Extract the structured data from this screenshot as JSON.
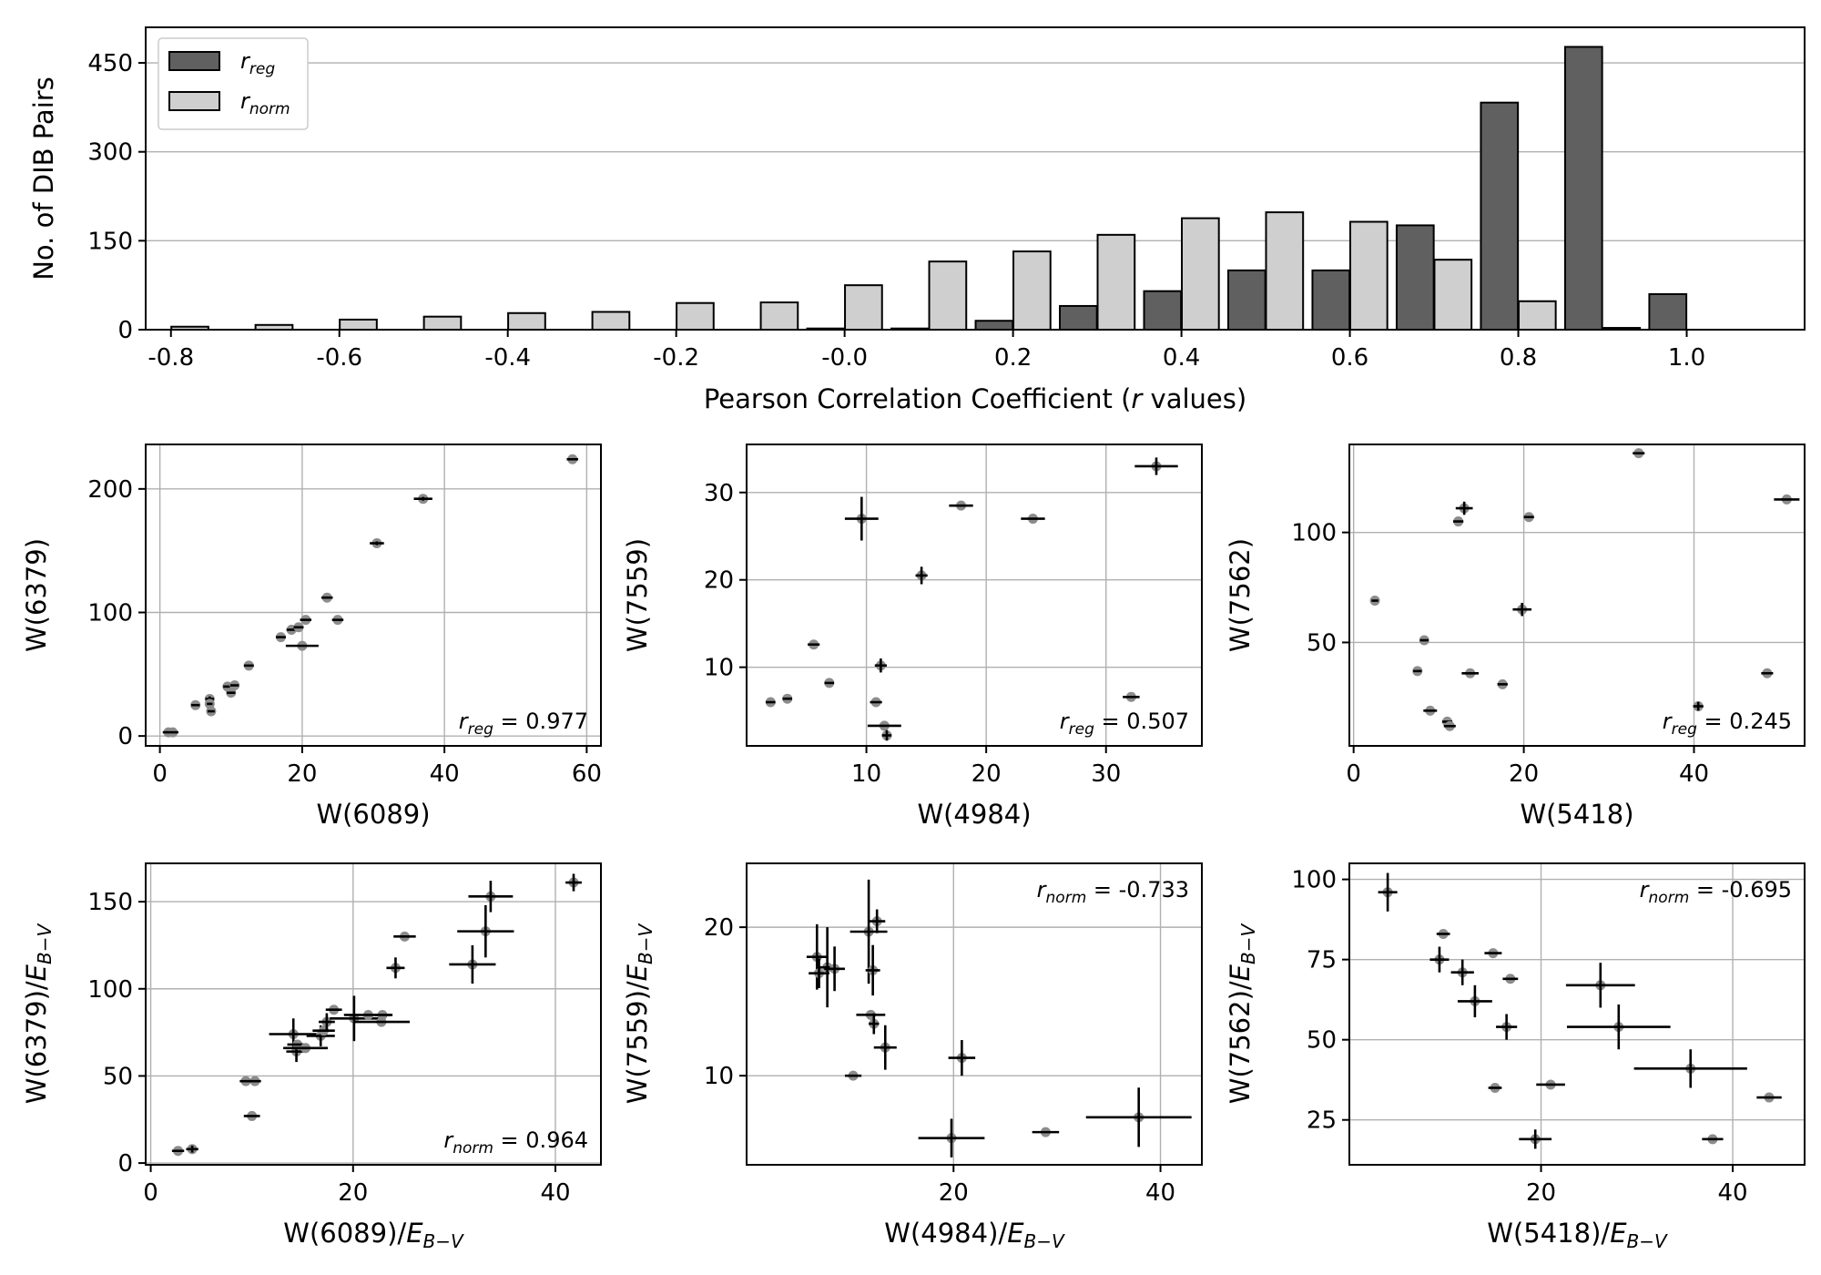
{
  "chart_data": [
    {
      "type": "bar",
      "ylabel": "No. of DIB Pairs",
      "xlabel_prefix": "Pearson Correlation Coefficient (",
      "xlabel_var": "r",
      "xlabel_suffix": " values)",
      "xlim": [
        -0.83,
        1.14
      ],
      "ylim": [
        0,
        510
      ],
      "xticks": [
        -0.8,
        -0.6,
        -0.4,
        -0.2,
        0.0,
        0.2,
        0.4,
        0.6,
        0.8,
        1.0
      ],
      "xtick_labels": [
        "-0.8",
        "-0.6",
        "-0.4",
        "-0.2",
        "-0.0",
        "0.2",
        "0.4",
        "0.6",
        "0.8",
        "1.0"
      ],
      "yticks": [
        0,
        150,
        300,
        450
      ],
      "ytick_labels": [
        "0",
        "150",
        "300",
        "450"
      ],
      "grid": "y",
      "legend_position": "top-left",
      "bins": [
        -0.8,
        -0.7,
        -0.6,
        -0.5,
        -0.4,
        -0.3,
        -0.2,
        -0.1,
        0.0,
        0.1,
        0.2,
        0.3,
        0.4,
        0.5,
        0.6,
        0.7,
        0.8,
        0.9,
        1.0
      ],
      "series": [
        {
          "name": "r_reg",
          "label": "r",
          "sub": "reg",
          "color": "#606060",
          "values": [
            0,
            0,
            0,
            0,
            0,
            0,
            0,
            0,
            2,
            2,
            15,
            40,
            65,
            100,
            100,
            176,
            383,
            477,
            60
          ]
        },
        {
          "name": "r_norm",
          "label": "r",
          "sub": "norm",
          "color": "#cfcfcf",
          "values": [
            5,
            8,
            17,
            22,
            28,
            30,
            45,
            46,
            75,
            115,
            132,
            160,
            188,
            198,
            182,
            118,
            48,
            3,
            0
          ]
        }
      ]
    },
    {
      "type": "scatter",
      "xlabel": "W(6089)",
      "ylabel": "W(6379)",
      "xlim": [
        -2,
        62
      ],
      "ylim": [
        -8,
        236
      ],
      "xticks": [
        0,
        20,
        40,
        60
      ],
      "yticks": [
        0,
        100,
        200
      ],
      "annotation": {
        "var": "r",
        "sub": "reg",
        "text": " = 0.977",
        "position": "bottom-right"
      },
      "points": [
        [
          1.2,
          3,
          0.8,
          0
        ],
        [
          1.8,
          3,
          0.8,
          0
        ],
        [
          5,
          25,
          0.6,
          0
        ],
        [
          7,
          30,
          0.6,
          2
        ],
        [
          7,
          26,
          0.4,
          0
        ],
        [
          7.2,
          20,
          0.5,
          0
        ],
        [
          9.5,
          40,
          0.6,
          0
        ],
        [
          10,
          35,
          0.6,
          0
        ],
        [
          10.5,
          41,
          0.6,
          0
        ],
        [
          12.5,
          57,
          0.7,
          0
        ],
        [
          17,
          80,
          0.7,
          0
        ],
        [
          18.5,
          86,
          0.7,
          0
        ],
        [
          19.5,
          88,
          0.7,
          0
        ],
        [
          20,
          73,
          2.3,
          0
        ],
        [
          20.5,
          94,
          0.8,
          0
        ],
        [
          23.5,
          112,
          0.8,
          0
        ],
        [
          25,
          94,
          0.8,
          0
        ],
        [
          30.5,
          156,
          1.0,
          1.5
        ],
        [
          37,
          192,
          1.3,
          1.5
        ],
        [
          58,
          224,
          0.8,
          0
        ]
      ]
    },
    {
      "type": "scatter",
      "xlabel": "W(4984)",
      "ylabel": "W(7559)",
      "xlim": [
        0,
        38
      ],
      "ylim": [
        1,
        35.5
      ],
      "xticks": [
        10,
        20,
        30
      ],
      "yticks": [
        10,
        20,
        30
      ],
      "annotation": {
        "var": "r",
        "sub": "reg",
        "text": " = 0.507",
        "position": "bottom-right"
      },
      "points": [
        [
          2,
          6,
          0.4,
          0
        ],
        [
          3.4,
          6.4,
          0.4,
          0
        ],
        [
          5.6,
          12.6,
          0.5,
          0
        ],
        [
          6.9,
          8.2,
          0.4,
          0
        ],
        [
          9.6,
          27,
          1.4,
          2.5
        ],
        [
          10.8,
          6,
          0.5,
          0
        ],
        [
          11.2,
          10.2,
          0.5,
          0.8
        ],
        [
          11.5,
          3.3,
          1.4,
          0
        ],
        [
          11.7,
          2.2,
          0.4,
          0.6
        ],
        [
          14.6,
          20.5,
          0.5,
          1
        ],
        [
          17.9,
          28.5,
          1.0,
          0
        ],
        [
          23.9,
          27,
          1.0,
          0
        ],
        [
          32.1,
          6.6,
          0.7,
          0
        ],
        [
          34.2,
          33,
          1.8,
          1
        ]
      ]
    },
    {
      "type": "scatter",
      "xlabel": "W(5418)",
      "ylabel": "W(7562)",
      "xlim": [
        -0.5,
        53
      ],
      "ylim": [
        3,
        140
      ],
      "xticks": [
        0,
        20,
        40
      ],
      "yticks": [
        50,
        100
      ],
      "annotation": {
        "var": "r",
        "sub": "reg",
        "text": " = 0.245",
        "position": "bottom-right"
      },
      "points": [
        [
          2.5,
          69,
          0.4,
          0
        ],
        [
          7.5,
          37,
          0.5,
          0
        ],
        [
          8.3,
          51,
          0.5,
          0
        ],
        [
          9,
          19,
          0.8,
          0
        ],
        [
          11,
          14,
          0.6,
          0
        ],
        [
          11.3,
          12,
          0.7,
          0
        ],
        [
          12.3,
          105,
          0.6,
          0
        ],
        [
          13,
          111,
          1.0,
          3
        ],
        [
          13.7,
          36,
          1.0,
          0
        ],
        [
          17.5,
          31,
          0.6,
          0
        ],
        [
          19.8,
          65,
          1.1,
          3
        ],
        [
          20.6,
          107,
          0.6,
          0
        ],
        [
          33.5,
          136,
          0.7,
          0
        ],
        [
          40.5,
          21,
          0.6,
          2
        ],
        [
          48.6,
          36,
          0.7,
          0
        ],
        [
          50.9,
          115,
          1.5,
          0
        ]
      ]
    },
    {
      "type": "scatter",
      "xlabel_var": "W(6089)/",
      "xlabel_e": "E",
      "xlabel_sub": "B−V",
      "ylabel_var": "W(6379)/",
      "ylabel_e": "E",
      "ylabel_sub": "B−V",
      "xlim": [
        -0.5,
        44.5
      ],
      "ylim": [
        -1,
        172
      ],
      "xticks": [
        0,
        20,
        40
      ],
      "yticks": [
        0,
        50,
        100,
        150
      ],
      "annotation": {
        "var": "r",
        "sub": "norm",
        "text": " = 0.964",
        "position": "bottom-right"
      },
      "points": [
        [
          2.7,
          7,
          0.6,
          0
        ],
        [
          4.1,
          8,
          0.6,
          2
        ],
        [
          9.4,
          47,
          0.6,
          0
        ],
        [
          10.3,
          47,
          0.6,
          0
        ],
        [
          10,
          27,
          0.8,
          0
        ],
        [
          14.1,
          74,
          2.4,
          9
        ],
        [
          14.4,
          64,
          1.0,
          6
        ],
        [
          14.5,
          68,
          1.0,
          0
        ],
        [
          15.3,
          66,
          2.2,
          0
        ],
        [
          16.8,
          73,
          1.4,
          6
        ],
        [
          17.1,
          76,
          1.1,
          0
        ],
        [
          17.4,
          81,
          0.8,
          5
        ],
        [
          18.1,
          88,
          0.8,
          0
        ],
        [
          20.1,
          83,
          2.4,
          13
        ],
        [
          21.5,
          85,
          2.4,
          0
        ],
        [
          22.8,
          81,
          2.8,
          0
        ],
        [
          22.9,
          85,
          0.8,
          0
        ],
        [
          24.2,
          112,
          0.9,
          6
        ],
        [
          25.1,
          130,
          1.1,
          0
        ],
        [
          31.8,
          114,
          2.3,
          11
        ],
        [
          33.1,
          133,
          2.8,
          15
        ],
        [
          33.6,
          153,
          2.2,
          9
        ],
        [
          41.8,
          161,
          0.8,
          5
        ]
      ]
    },
    {
      "type": "scatter",
      "xlabel_var": "W(4984)/",
      "xlabel_e": "E",
      "xlabel_sub": "B−V",
      "ylabel_var": "W(7559)/",
      "ylabel_e": "E",
      "ylabel_sub": "B−V",
      "xlim": [
        0,
        44
      ],
      "ylim": [
        4,
        24.3
      ],
      "xticks": [
        20,
        40
      ],
      "yticks": [
        10,
        20
      ],
      "annotation": {
        "var": "r",
        "sub": "norm",
        "text": " = -0.733",
        "position": "top-right"
      },
      "points": [
        [
          6.8,
          18,
          1,
          2.2
        ],
        [
          7,
          16.9,
          1,
          1
        ],
        [
          7.8,
          17.3,
          1,
          2.7
        ],
        [
          8.5,
          17.2,
          1,
          1.5
        ],
        [
          10.3,
          10,
          0.8,
          0
        ],
        [
          11.8,
          19.7,
          1.8,
          3.5
        ],
        [
          12,
          14.1,
          1.4,
          0
        ],
        [
          12.2,
          17.1,
          0.7,
          1.7
        ],
        [
          12.3,
          13.5,
          0.5,
          0.7
        ],
        [
          12.6,
          20.4,
          0.8,
          0.8
        ],
        [
          13.4,
          11.9,
          1.1,
          1.5
        ],
        [
          19.8,
          5.8,
          3.2,
          1.3
        ],
        [
          20.8,
          11.2,
          1.3,
          1.2
        ],
        [
          28.9,
          6.2,
          1.3,
          0
        ],
        [
          37.9,
          7.2,
          5.1,
          2
        ]
      ]
    },
    {
      "type": "scatter",
      "xlabel_var": "W(5418)/",
      "xlabel_e": "E",
      "xlabel_sub": "B−V",
      "ylabel_var": "W(7562)/",
      "ylabel_e": "E",
      "ylabel_sub": "B−V",
      "xlim": [
        0,
        47.5
      ],
      "ylim": [
        11,
        105
      ],
      "xticks": [
        20,
        40
      ],
      "yticks": [
        25,
        50,
        75,
        100
      ],
      "annotation": {
        "var": "r",
        "sub": "norm",
        "text": " = -0.695",
        "position": "top-right"
      },
      "points": [
        [
          4,
          96,
          1,
          6
        ],
        [
          9.4,
          75,
          1,
          4
        ],
        [
          9.8,
          83,
          0.7,
          0
        ],
        [
          11.8,
          71,
          1.2,
          4
        ],
        [
          13.1,
          62,
          1.8,
          5
        ],
        [
          15,
          77,
          0.9,
          0
        ],
        [
          15.2,
          35,
          0.7,
          0
        ],
        [
          16.4,
          54,
          1.1,
          4
        ],
        [
          16.8,
          69,
          0.8,
          0
        ],
        [
          19.4,
          19,
          1.7,
          3
        ],
        [
          21,
          36,
          1.5,
          0
        ],
        [
          26.2,
          67,
          3.6,
          7
        ],
        [
          28.1,
          54,
          5.4,
          7
        ],
        [
          35.6,
          41,
          5.9,
          6
        ],
        [
          37.9,
          19,
          1.1,
          0
        ],
        [
          43.8,
          32,
          1.3,
          0
        ]
      ]
    }
  ]
}
